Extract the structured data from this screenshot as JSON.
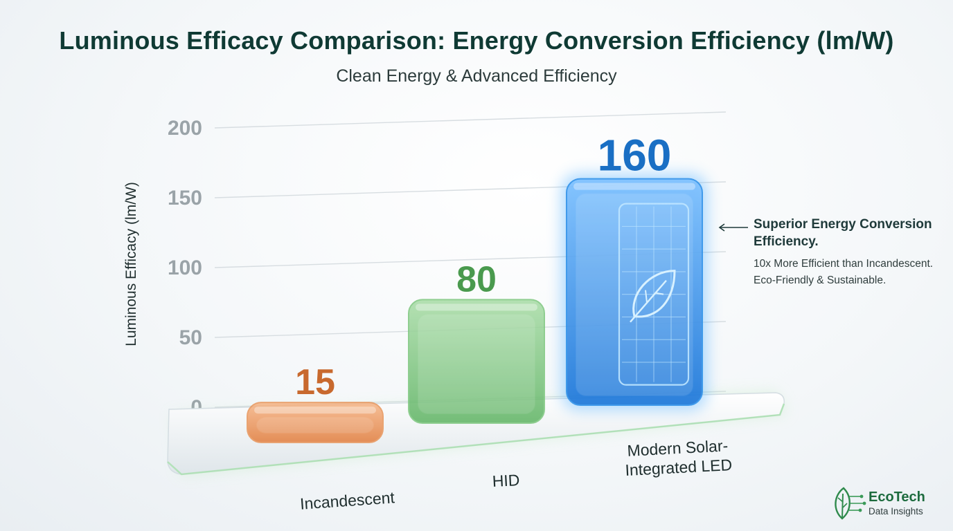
{
  "chart_data": {
    "type": "bar",
    "title": "Luminous Efficacy Comparison: Energy Conversion Efficiency (lm/W)",
    "subtitle": "Clean Energy & Advanced Efficiency",
    "ylabel": "Luminous Efficacy (lm/W)",
    "xlabel": "",
    "ylim": [
      0,
      200
    ],
    "yticks": [
      0,
      50,
      100,
      150,
      200
    ],
    "grid": true,
    "categories": [
      "Incandescent",
      "HID",
      "Modern Solar-Integrated LED"
    ],
    "category_lines": [
      [
        "Incandescent"
      ],
      [
        "HID"
      ],
      [
        "Modern Solar-",
        "Integrated LED"
      ]
    ],
    "values": [
      15,
      80,
      160
    ],
    "data_labels": [
      "15",
      "80",
      "160"
    ],
    "colors": [
      "#e8955a",
      "#7dc77e",
      "#2a8ee8"
    ],
    "label_colors": [
      "#c8692e",
      "#4a9a4e",
      "#1a6fc4"
    ]
  },
  "annotation": {
    "heading": "Superior Energy Conversion Efficiency.",
    "line1": "10x More Efficient than Incandescent.",
    "line2": "Eco-Friendly & Sustainable."
  },
  "logo": {
    "name": "EcoTech",
    "tagline": "Data Insights",
    "icon": "leaf-circuit-icon",
    "color": "#1d6b3e"
  },
  "icons": {
    "bar_emblem": "solar-panel-leaf-icon",
    "annotation_pointer": "arrow-left-icon"
  }
}
